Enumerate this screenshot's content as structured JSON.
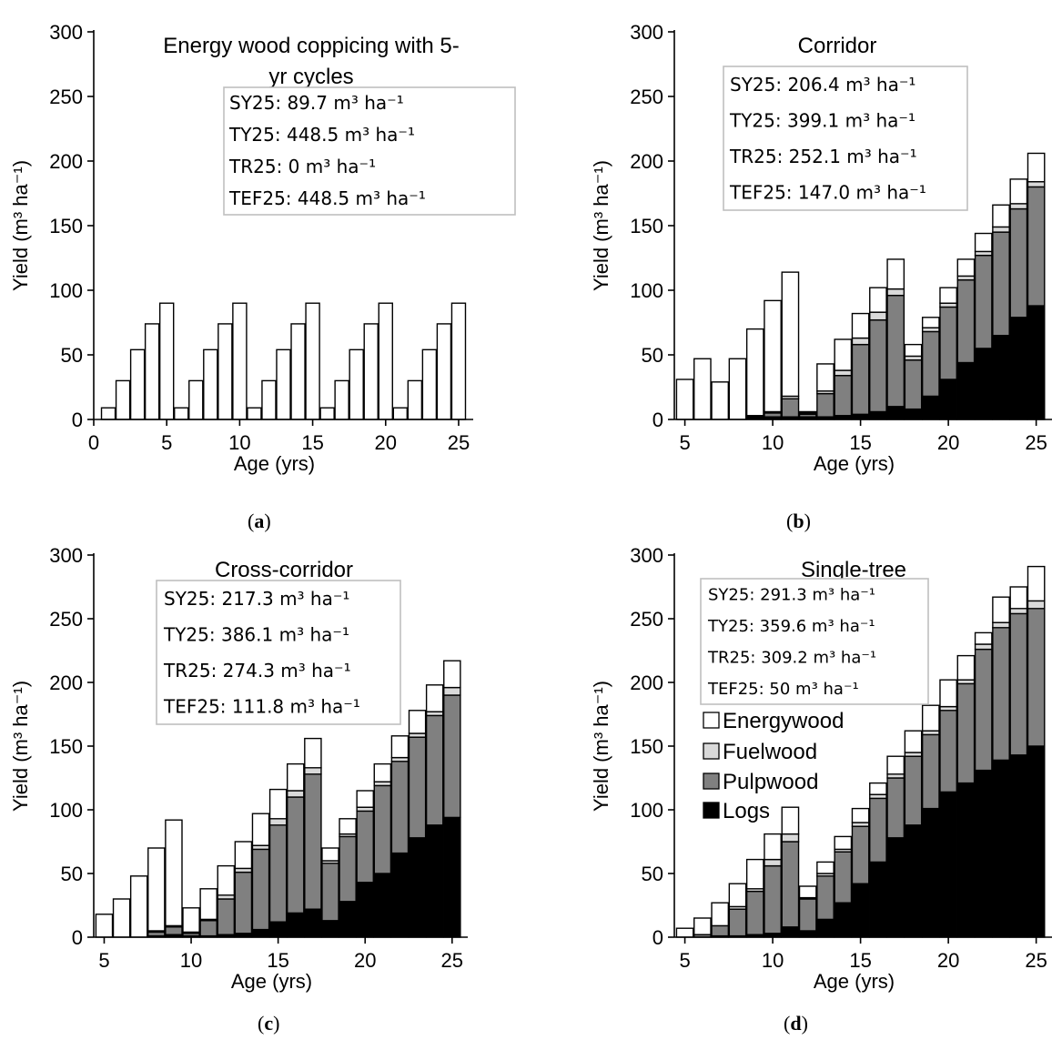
{
  "colors": {
    "logs": "#000000",
    "pulpwood": "#808080",
    "fuelwood": "#d9d9d9",
    "energywood": "#ffffff",
    "stroke": "#000000",
    "box": "#bfbfbf"
  },
  "legend": [
    {
      "label": "Energywood",
      "color": "#ffffff"
    },
    {
      "label": "Fuelwood",
      "color": "#d9d9d9"
    },
    {
      "label": "Pulpwood",
      "color": "#808080"
    },
    {
      "label": "Logs",
      "color": "#000000"
    }
  ],
  "chart_data": [
    {
      "id": "a",
      "caption": "a",
      "type": "bar",
      "stacked": true,
      "title_lines": [
        "Energy wood coppicing with 5-",
        "yr cycles"
      ],
      "xlabel": "Age (yrs)",
      "ylabel": "Yield (m³ ha⁻¹)",
      "ylim": [
        0,
        300
      ],
      "yticks": [
        "0",
        "50",
        "100",
        "150",
        "200",
        "250",
        "300"
      ],
      "xticks": [
        "0",
        "5",
        "10",
        "15",
        "20",
        "25"
      ],
      "x": [
        1,
        2,
        3,
        4,
        5,
        6,
        7,
        8,
        9,
        10,
        11,
        12,
        13,
        14,
        15,
        16,
        17,
        18,
        19,
        20,
        21,
        22,
        23,
        24,
        25
      ],
      "series": [
        {
          "name": "Energywood",
          "values": [
            9,
            30,
            54,
            74,
            90,
            9,
            30,
            54,
            74,
            90,
            9,
            30,
            54,
            74,
            90,
            9,
            30,
            54,
            74,
            90,
            9,
            30,
            54,
            74,
            90
          ]
        }
      ],
      "stats": [
        "SY25: 89.7 m³ ha⁻¹",
        "TY25: 448.5 m³ ha⁻¹",
        "TR25: 0 m³ ha⁻¹",
        "TEF25: 448.5 m³ ha⁻¹"
      ]
    },
    {
      "id": "b",
      "caption": "b",
      "type": "bar",
      "stacked": true,
      "title_lines": [
        "Corridor"
      ],
      "xlabel": "Age (yrs)",
      "ylabel": "Yield (m³ ha⁻¹)",
      "ylim": [
        0,
        300
      ],
      "yticks": [
        "0",
        "50",
        "100",
        "150",
        "200",
        "250",
        "300"
      ],
      "xticks": [
        "5",
        "10",
        "15",
        "20",
        "25"
      ],
      "x": [
        5,
        6,
        7,
        8,
        9,
        10,
        11,
        12,
        13,
        14,
        15,
        16,
        17,
        18,
        19,
        20,
        21,
        22,
        23,
        24,
        25
      ],
      "series": [
        {
          "name": "Logs",
          "values": [
            0,
            0,
            0,
            0,
            1,
            2,
            2,
            2,
            2,
            3,
            4,
            6,
            10,
            8,
            18,
            31,
            44,
            55,
            65,
            79,
            88
          ]
        },
        {
          "name": "Pulpwood",
          "values": [
            0,
            0,
            0,
            0,
            1,
            3,
            14,
            2,
            18,
            31,
            54,
            71,
            86,
            38,
            50,
            56,
            64,
            72,
            80,
            84,
            92
          ]
        },
        {
          "name": "Fuelwood",
          "values": [
            0,
            0,
            0,
            0,
            1,
            1,
            2,
            1,
            2,
            4,
            5,
            6,
            5,
            3,
            3,
            3,
            3,
            3,
            4,
            4,
            4
          ]
        },
        {
          "name": "Energywood",
          "values": [
            31,
            47,
            29,
            47,
            67,
            86,
            96,
            1,
            21,
            24,
            19,
            19,
            23,
            9,
            8,
            12,
            13,
            14,
            17,
            19,
            22
          ]
        }
      ],
      "stats": [
        "SY25: 206.4 m³ ha⁻¹",
        "TY25: 399.1 m³ ha⁻¹",
        "TR25: 252.1 m³ ha⁻¹",
        "TEF25: 147.0 m³ ha⁻¹"
      ]
    },
    {
      "id": "c",
      "caption": "c",
      "type": "bar",
      "stacked": true,
      "title_lines": [
        "Cross-corridor"
      ],
      "xlabel": "Age (yrs)",
      "ylabel": "Yield (m³ ha⁻¹)",
      "ylim": [
        0,
        300
      ],
      "yticks": [
        "0",
        "50",
        "100",
        "150",
        "200",
        "250",
        "300"
      ],
      "xticks": [
        "5",
        "10",
        "15",
        "20",
        "25"
      ],
      "x": [
        5,
        6,
        7,
        8,
        9,
        10,
        11,
        12,
        13,
        14,
        15,
        16,
        17,
        18,
        19,
        20,
        21,
        22,
        23,
        24,
        25
      ],
      "series": [
        {
          "name": "Logs",
          "values": [
            0,
            0,
            0,
            1,
            2,
            1,
            1,
            2,
            3,
            6,
            12,
            19,
            22,
            13,
            28,
            43,
            50,
            66,
            78,
            88,
            94
          ]
        },
        {
          "name": "Pulpwood",
          "values": [
            0,
            0,
            0,
            3,
            6,
            2,
            12,
            28,
            48,
            63,
            76,
            91,
            106,
            45,
            51,
            56,
            69,
            72,
            79,
            86,
            96
          ]
        },
        {
          "name": "Fuelwood",
          "values": [
            0,
            0,
            0,
            1,
            1,
            1,
            1,
            3,
            3,
            3,
            5,
            5,
            5,
            2,
            2,
            3,
            3,
            3,
            3,
            3,
            6
          ]
        },
        {
          "name": "Energywood",
          "values": [
            18,
            30,
            48,
            65,
            83,
            19,
            24,
            23,
            21,
            25,
            23,
            21,
            23,
            10,
            12,
            13,
            14,
            17,
            18,
            21,
            21
          ]
        }
      ],
      "stats": [
        "SY25: 217.3 m³ ha⁻¹",
        "TY25: 386.1 m³ ha⁻¹",
        "TR25: 274.3 m³ ha⁻¹",
        "TEF25: 111.8 m³ ha⁻¹"
      ]
    },
    {
      "id": "d",
      "caption": "d",
      "type": "bar",
      "stacked": true,
      "title_lines": [
        "Single-tree"
      ],
      "xlabel": "Age (yrs)",
      "ylabel": "Yield (m³ ha⁻¹)",
      "ylim": [
        0,
        300
      ],
      "yticks": [
        "0",
        "50",
        "100",
        "150",
        "200",
        "250",
        "300"
      ],
      "xticks": [
        "5",
        "10",
        "15",
        "20",
        "25"
      ],
      "x": [
        5,
        6,
        7,
        8,
        9,
        10,
        11,
        12,
        13,
        14,
        15,
        16,
        17,
        18,
        19,
        20,
        21,
        22,
        23,
        24,
        25
      ],
      "series": [
        {
          "name": "Logs",
          "values": [
            0,
            0,
            1,
            1,
            2,
            3,
            8,
            5,
            14,
            27,
            42,
            59,
            78,
            88,
            101,
            114,
            121,
            131,
            139,
            143,
            150
          ]
        },
        {
          "name": "Pulpwood",
          "values": [
            0,
            2,
            8,
            21,
            34,
            53,
            67,
            25,
            34,
            40,
            45,
            50,
            47,
            54,
            58,
            64,
            78,
            95,
            104,
            111,
            108
          ]
        },
        {
          "name": "Fuelwood",
          "values": [
            0,
            0,
            0,
            2,
            2,
            5,
            6,
            1,
            2,
            2,
            3,
            3,
            3,
            3,
            3,
            3,
            3,
            4,
            4,
            4,
            6
          ]
        },
        {
          "name": "Energywood",
          "values": [
            7,
            13,
            18,
            18,
            23,
            20,
            21,
            9,
            9,
            10,
            11,
            9,
            14,
            17,
            20,
            21,
            19,
            9,
            20,
            17,
            27
          ]
        }
      ],
      "stats": [
        "SY25: 291.3 m³ ha⁻¹",
        "TY25: 359.6 m³ ha⁻¹",
        "TR25: 309.2 m³ ha⁻¹",
        "TEF25: 50 m³ ha⁻¹"
      ]
    }
  ]
}
